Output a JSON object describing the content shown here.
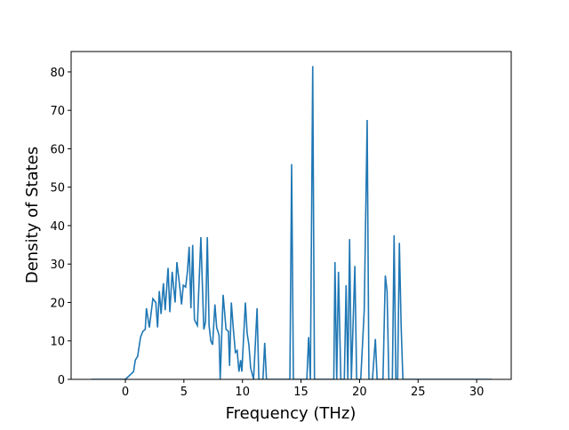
{
  "chart_data": {
    "type": "line",
    "x_label": "Frequency (THz)",
    "y_label": "Density of States",
    "x": [
      -2.9,
      0,
      0.7,
      0.85,
      1.05,
      1.3,
      1.5,
      1.7,
      1.8,
      2.05,
      2.35,
      2.6,
      2.75,
      2.9,
      3.05,
      3.25,
      3.4,
      3.65,
      3.8,
      4.0,
      4.25,
      4.4,
      4.65,
      4.8,
      4.95,
      5.15,
      5.3,
      5.45,
      5.6,
      5.75,
      5.9,
      6.15,
      6.45,
      6.7,
      6.85,
      7.0,
      7.15,
      7.3,
      7.45,
      7.65,
      7.8,
      8.0,
      8.1,
      8.35,
      8.6,
      8.8,
      8.9,
      9.05,
      9.25,
      9.4,
      9.55,
      9.7,
      9.85,
      9.95,
      10.25,
      10.4,
      10.55,
      10.7,
      10.95,
      11.25,
      11.4,
      11.75,
      11.9,
      12.05,
      14.05,
      14.2,
      14.35,
      15.5,
      15.65,
      15.8,
      16.0,
      16.15,
      17.8,
      17.9,
      18.05,
      18.2,
      18.4,
      18.7,
      18.85,
      19.0,
      19.15,
      19.3,
      19.6,
      19.75,
      20.1,
      20.4,
      20.65,
      20.8,
      21.1,
      21.35,
      21.5,
      22.0,
      22.2,
      22.35,
      22.5,
      22.8,
      22.95,
      23.1,
      23.25,
      23.4,
      23.55,
      23.7,
      31.3
    ],
    "series": [
      {
        "color": "#1f77b4",
        "values": [
          0,
          0,
          2,
          5,
          6,
          11,
          12.5,
          13,
          18.5,
          13.5,
          21,
          20,
          13.5,
          23,
          17,
          25,
          18,
          29,
          17.5,
          28,
          20,
          30.5,
          24,
          19.5,
          24.5,
          24,
          28,
          34.5,
          18.5,
          35,
          15.5,
          14,
          37,
          13,
          15,
          37,
          14,
          10,
          9,
          19.5,
          13.5,
          11.5,
          0,
          22,
          13,
          12.5,
          3.5,
          20,
          12,
          7,
          7.5,
          2,
          5,
          2,
          20,
          12,
          9,
          3,
          0,
          18.5,
          0,
          0,
          9.5,
          0,
          0,
          56,
          0,
          0,
          11,
          0,
          81.5,
          0,
          0,
          30.5,
          0,
          28,
          0,
          0,
          24.5,
          0,
          36.5,
          0,
          29.5,
          0,
          0,
          18,
          67.5,
          0,
          0,
          10.5,
          0,
          0,
          27,
          23,
          0,
          0,
          37.5,
          0,
          0,
          35.5,
          14,
          0,
          0
        ]
      }
    ],
    "xlim": [
      -4.63,
      32.95
    ],
    "ylim": [
      0,
      85.3
    ],
    "xticks": [
      0,
      5,
      10,
      15,
      20,
      25,
      30
    ],
    "yticks": [
      0,
      10,
      20,
      30,
      40,
      50,
      60,
      70,
      80
    ]
  }
}
